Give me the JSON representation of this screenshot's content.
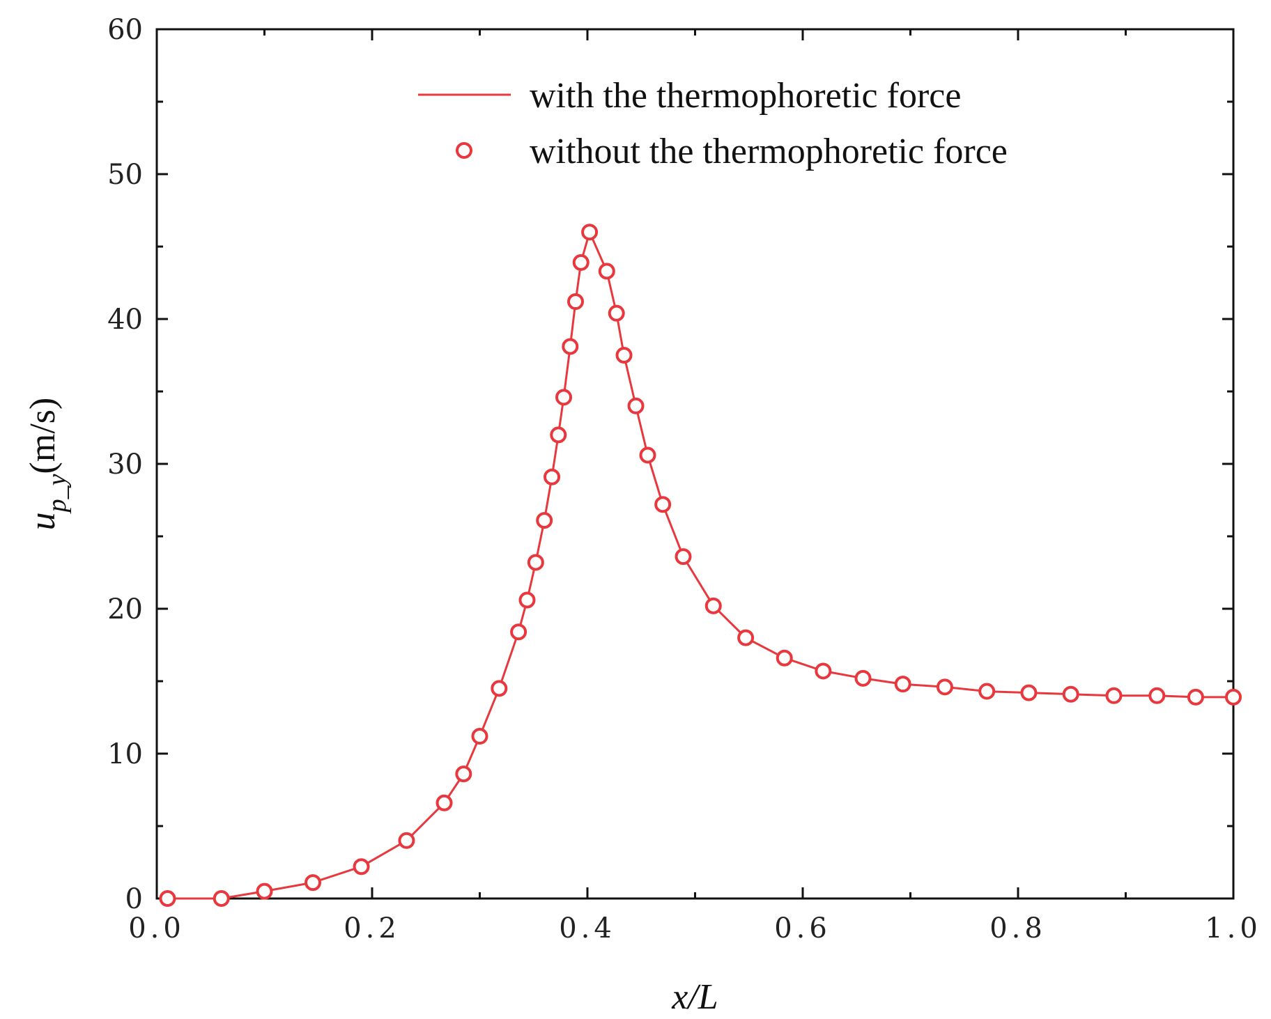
{
  "chart_data": {
    "type": "line",
    "xlabel": "x/L",
    "ylabel": {
      "base": "u",
      "sub": "p_y",
      "unit": "(m/s)"
    },
    "xlim": [
      0.0,
      1.0
    ],
    "ylim": [
      0,
      60
    ],
    "xticks": [
      "0.0",
      "0.2",
      "0.4",
      "0.6",
      "0.8",
      "1.0"
    ],
    "yticks": [
      "0",
      "10",
      "20",
      "30",
      "40",
      "50",
      "60"
    ],
    "grid": false,
    "legend_position": "top-right",
    "series": [
      {
        "name": "with the thermophoretic force",
        "style": "line",
        "color": "#e8383d",
        "x": [
          0.01,
          0.06,
          0.1,
          0.145,
          0.19,
          0.232,
          0.267,
          0.285,
          0.3,
          0.318,
          0.336,
          0.344,
          0.352,
          0.36,
          0.367,
          0.373,
          0.378,
          0.384,
          0.389,
          0.394,
          0.402,
          0.418,
          0.427,
          0.434,
          0.445,
          0.456,
          0.47,
          0.489,
          0.517,
          0.547,
          0.583,
          0.619,
          0.656,
          0.693,
          0.732,
          0.771,
          0.81,
          0.849,
          0.889,
          0.929,
          0.965,
          1.0
        ],
        "y": [
          0.0,
          0.0,
          0.5,
          1.1,
          2.2,
          4.0,
          6.6,
          8.6,
          11.2,
          14.5,
          18.4,
          20.6,
          23.2,
          26.1,
          29.1,
          32.0,
          34.6,
          38.1,
          41.2,
          43.9,
          46.0,
          43.3,
          40.4,
          37.5,
          34.0,
          30.6,
          27.2,
          23.6,
          20.2,
          18.0,
          16.6,
          15.7,
          15.2,
          14.8,
          14.6,
          14.3,
          14.2,
          14.1,
          14.0,
          14.0,
          13.9,
          13.9
        ]
      },
      {
        "name": "without the thermophoretic force",
        "style": "markers",
        "marker": "open-circle",
        "color": "#e8383d",
        "x": [
          0.01,
          0.06,
          0.1,
          0.145,
          0.19,
          0.232,
          0.267,
          0.285,
          0.3,
          0.318,
          0.336,
          0.344,
          0.352,
          0.36,
          0.367,
          0.373,
          0.378,
          0.384,
          0.389,
          0.394,
          0.402,
          0.418,
          0.427,
          0.434,
          0.445,
          0.456,
          0.47,
          0.489,
          0.517,
          0.547,
          0.583,
          0.619,
          0.656,
          0.693,
          0.732,
          0.771,
          0.81,
          0.849,
          0.889,
          0.929,
          0.965,
          1.0
        ],
        "y": [
          0.0,
          0.0,
          0.5,
          1.1,
          2.2,
          4.0,
          6.6,
          8.6,
          11.2,
          14.5,
          18.4,
          20.6,
          23.2,
          26.1,
          29.1,
          32.0,
          34.6,
          38.1,
          41.2,
          43.9,
          46.0,
          43.3,
          40.4,
          37.5,
          34.0,
          30.6,
          27.2,
          23.6,
          20.2,
          18.0,
          16.6,
          15.7,
          15.2,
          14.8,
          14.6,
          14.3,
          14.2,
          14.1,
          14.0,
          14.0,
          13.9,
          13.9
        ]
      }
    ]
  }
}
